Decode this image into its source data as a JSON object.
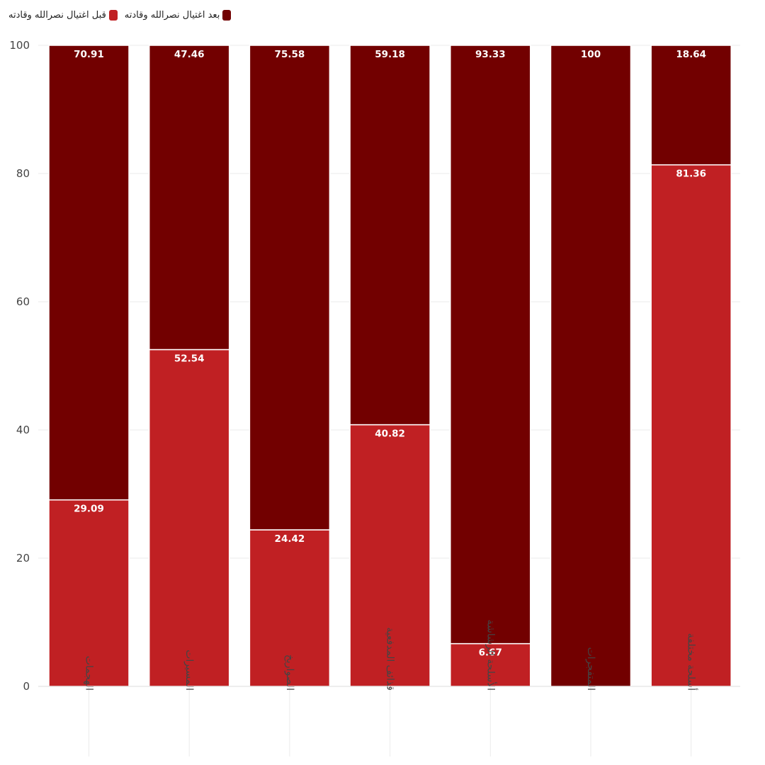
{
  "chart_data": {
    "type": "bar",
    "stacked": true,
    "categories": [
      "الهجمات",
      "المسيرات",
      "الصواريخ",
      "قذائف المدفعية",
      "الأسلحة الرشاشة",
      "المتفجرات",
      "أسلحة مختلفة"
    ],
    "series": [
      {
        "name": "قبل اغتيال نصرالله وقادته",
        "color": "#c02023",
        "values": [
          29.09,
          52.54,
          24.42,
          40.82,
          6.67,
          0,
          81.36
        ],
        "labels": [
          "29.09",
          "52.54",
          "24.42",
          "40.82",
          "6.67",
          "",
          "81.36"
        ]
      },
      {
        "name": "بعد اغتيال نصرالله وقادته",
        "color": "#720000",
        "values": [
          70.91,
          47.46,
          75.58,
          59.18,
          93.33,
          100,
          18.64
        ],
        "labels": [
          "70.91",
          "47.46",
          "75.58",
          "59.18",
          "93.33",
          "100",
          "18.64"
        ]
      }
    ],
    "ylim": [
      0,
      100
    ],
    "yticks": [
      0,
      20,
      40,
      60,
      80,
      100
    ],
    "grid": true,
    "legend": "top-left"
  }
}
